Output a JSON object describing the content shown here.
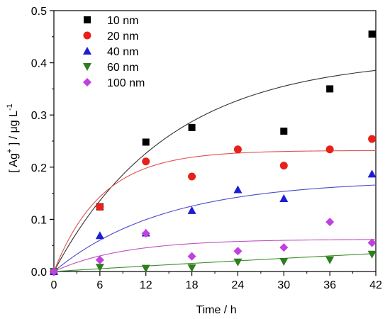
{
  "chart_data": {
    "type": "scatter",
    "xlabel": "Time / h",
    "ylabel": {
      "open": "[ Ag",
      "sup": "+",
      "mid": " ] / μg L",
      "sup2": "-1"
    },
    "xlim": [
      0,
      42
    ],
    "ylim": [
      0,
      0.5
    ],
    "x_ticks": [
      0,
      6,
      12,
      18,
      24,
      30,
      36,
      42
    ],
    "y_ticks": [
      0.0,
      0.1,
      0.2,
      0.3,
      0.4,
      0.5
    ],
    "grid": false,
    "legend": "top-left",
    "series": [
      {
        "name": "10 nm",
        "marker": "square",
        "color": "#000000",
        "curve_color": "#333333",
        "points": [
          [
            0,
            0.0
          ],
          [
            6,
            0.124
          ],
          [
            12,
            0.248
          ],
          [
            18,
            0.276
          ],
          [
            30,
            0.269
          ],
          [
            36,
            0.35
          ],
          [
            41.5,
            0.455
          ]
        ],
        "fit": {
          "plateau": 0.41,
          "rate": 0.067
        }
      },
      {
        "name": "20 nm",
        "marker": "circle",
        "color": "#e8201a",
        "curve_color": "#e05050",
        "points": [
          [
            0,
            0.0
          ],
          [
            6,
            0.124
          ],
          [
            12,
            0.211
          ],
          [
            18,
            0.182
          ],
          [
            24,
            0.234
          ],
          [
            30,
            0.203
          ],
          [
            36,
            0.234
          ],
          [
            41.5,
            0.254
          ]
        ],
        "fit": {
          "plateau": 0.232,
          "rate": 0.16
        }
      },
      {
        "name": "40 nm",
        "marker": "triangle-up",
        "color": "#1d1dd6",
        "curve_color": "#4a4acc",
        "points": [
          [
            0,
            0.0
          ],
          [
            6,
            0.069
          ],
          [
            12,
            0.074
          ],
          [
            18,
            0.117
          ],
          [
            24,
            0.157
          ],
          [
            30,
            0.14
          ],
          [
            41.5,
            0.187
          ]
        ],
        "fit": {
          "plateau": 0.175,
          "rate": 0.07
        }
      },
      {
        "name": "60 nm",
        "marker": "triangle-down",
        "color": "#2e7d1f",
        "curve_color": "#3c8c2c",
        "points": [
          [
            0,
            0.0
          ],
          [
            6,
            0.008
          ],
          [
            12,
            0.006
          ],
          [
            18,
            0.007
          ],
          [
            24,
            0.018
          ],
          [
            30,
            0.019
          ],
          [
            36,
            0.022
          ],
          [
            41.5,
            0.033
          ]
        ],
        "fit": {
          "plateau": 0.2,
          "rate": 0.0045
        }
      },
      {
        "name": "100 nm",
        "marker": "diamond",
        "color": "#c040e0",
        "curve_color": "#c050c0",
        "points": [
          [
            0,
            0.0
          ],
          [
            6,
            0.022
          ],
          [
            12,
            0.073
          ],
          [
            18,
            0.029
          ],
          [
            24,
            0.039
          ],
          [
            30,
            0.046
          ],
          [
            36,
            0.095
          ],
          [
            41.5,
            0.055
          ]
        ],
        "fit": {
          "plateau": 0.062,
          "rate": 0.11
        }
      }
    ]
  }
}
